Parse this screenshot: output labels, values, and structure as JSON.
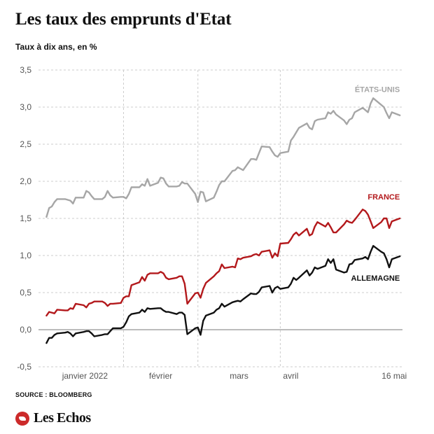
{
  "header": {
    "title": "Les taux des emprunts d'Etat",
    "subtitle": "Taux à dix ans, en %"
  },
  "footer": {
    "source": "SOURCE : BLOOMBERG",
    "brand": "Les Echos"
  },
  "colors": {
    "etats_unis": "#a6a6a6",
    "france": "#b3191c",
    "allemagne": "#111111",
    "grid": "#cccccc",
    "brand": "#cc2a2a"
  },
  "chart_data": {
    "type": "line",
    "title": "Les taux des emprunts d'Etat",
    "ylabel": "Taux à dix ans, en %",
    "ylim": [
      -0.5,
      3.5
    ],
    "yticks": [
      -0.5,
      0.0,
      0.5,
      1.0,
      1.5,
      2.0,
      2.5,
      3.0,
      3.5
    ],
    "ytick_labels": [
      "-0,5",
      "0,0",
      "0,5",
      "1,0",
      "1,5",
      "2,0",
      "2,5",
      "3,0",
      "3,5"
    ],
    "xlim": [
      "2021-12-31",
      "2022-05-17"
    ],
    "xticks": [
      {
        "date": "2022-01-03",
        "label": "janvier 2022"
      },
      {
        "date": "2022-02-01",
        "label": "février"
      },
      {
        "date": "2022-03-01",
        "label": "mars"
      },
      {
        "date": "2022-04-01",
        "label": "avril"
      },
      {
        "date": "2022-05-16",
        "label": "16 mai"
      }
    ],
    "grid": true,
    "x": [
      "2022-01-03",
      "2022-01-04",
      "2022-01-05",
      "2022-01-06",
      "2022-01-07",
      "2022-01-10",
      "2022-01-11",
      "2022-01-12",
      "2022-01-13",
      "2022-01-14",
      "2022-01-17",
      "2022-01-18",
      "2022-01-19",
      "2022-01-20",
      "2022-01-21",
      "2022-01-24",
      "2022-01-25",
      "2022-01-26",
      "2022-01-27",
      "2022-01-28",
      "2022-01-31",
      "2022-02-01",
      "2022-02-02",
      "2022-02-03",
      "2022-02-04",
      "2022-02-07",
      "2022-02-08",
      "2022-02-09",
      "2022-02-10",
      "2022-02-11",
      "2022-02-14",
      "2022-02-15",
      "2022-02-16",
      "2022-02-17",
      "2022-02-18",
      "2022-02-21",
      "2022-02-22",
      "2022-02-23",
      "2022-02-24",
      "2022-02-25",
      "2022-02-28",
      "2022-03-01",
      "2022-03-02",
      "2022-03-03",
      "2022-03-04",
      "2022-03-07",
      "2022-03-08",
      "2022-03-09",
      "2022-03-10",
      "2022-03-11",
      "2022-03-14",
      "2022-03-15",
      "2022-03-16",
      "2022-03-17",
      "2022-03-18",
      "2022-03-21",
      "2022-03-22",
      "2022-03-23",
      "2022-03-24",
      "2022-03-25",
      "2022-03-28",
      "2022-03-29",
      "2022-03-30",
      "2022-03-31",
      "2022-04-01",
      "2022-04-04",
      "2022-04-05",
      "2022-04-06",
      "2022-04-07",
      "2022-04-08",
      "2022-04-11",
      "2022-04-12",
      "2022-04-13",
      "2022-04-14",
      "2022-04-15",
      "2022-04-18",
      "2022-04-19",
      "2022-04-20",
      "2022-04-21",
      "2022-04-22",
      "2022-04-25",
      "2022-04-26",
      "2022-04-27",
      "2022-04-28",
      "2022-04-29",
      "2022-05-02",
      "2022-05-03",
      "2022-05-04",
      "2022-05-05",
      "2022-05-06",
      "2022-05-09",
      "2022-05-10",
      "2022-05-11",
      "2022-05-12",
      "2022-05-13",
      "2022-05-16"
    ],
    "series": [
      {
        "name": "ÉTATS-UNIS",
        "key": "etats_unis",
        "values": [
          1.52,
          1.64,
          1.66,
          1.72,
          1.76,
          1.76,
          1.75,
          1.74,
          1.7,
          1.78,
          1.78,
          1.87,
          1.85,
          1.8,
          1.76,
          1.76,
          1.79,
          1.87,
          1.81,
          1.78,
          1.79,
          1.79,
          1.77,
          1.83,
          1.92,
          1.92,
          1.96,
          1.94,
          2.03,
          1.94,
          1.98,
          2.05,
          2.04,
          1.97,
          1.93,
          1.93,
          1.94,
          1.99,
          1.97,
          1.97,
          1.83,
          1.72,
          1.86,
          1.85,
          1.73,
          1.78,
          1.86,
          1.95,
          2.0,
          2.0,
          2.14,
          2.15,
          2.19,
          2.17,
          2.15,
          2.3,
          2.3,
          2.29,
          2.38,
          2.47,
          2.46,
          2.4,
          2.35,
          2.33,
          2.38,
          2.4,
          2.55,
          2.6,
          2.66,
          2.72,
          2.78,
          2.72,
          2.7,
          2.81,
          2.83,
          2.85,
          2.93,
          2.91,
          2.95,
          2.9,
          2.82,
          2.77,
          2.83,
          2.85,
          2.93,
          2.99,
          2.96,
          2.93,
          3.05,
          3.12,
          3.03,
          3.0,
          2.92,
          2.85,
          2.93,
          2.89
        ]
      },
      {
        "name": "FRANCE",
        "key": "france",
        "values": [
          0.19,
          0.24,
          0.23,
          0.22,
          0.27,
          0.26,
          0.26,
          0.29,
          0.28,
          0.35,
          0.33,
          0.3,
          0.35,
          0.36,
          0.38,
          0.38,
          0.36,
          0.32,
          0.35,
          0.35,
          0.36,
          0.43,
          0.45,
          0.45,
          0.6,
          0.64,
          0.71,
          0.66,
          0.74,
          0.76,
          0.76,
          0.78,
          0.76,
          0.7,
          0.68,
          0.7,
          0.72,
          0.72,
          0.62,
          0.35,
          0.49,
          0.5,
          0.43,
          0.55,
          0.63,
          0.72,
          0.76,
          0.79,
          0.88,
          0.83,
          0.85,
          0.84,
          0.96,
          0.95,
          0.97,
          0.99,
          1.01,
          1.02,
          1.0,
          1.05,
          1.07,
          0.97,
          1.03,
          0.99,
          1.16,
          1.17,
          1.22,
          1.28,
          1.31,
          1.27,
          1.36,
          1.27,
          1.29,
          1.39,
          1.45,
          1.39,
          1.44,
          1.38,
          1.31,
          1.31,
          1.42,
          1.47,
          1.45,
          1.44,
          1.48,
          1.62,
          1.6,
          1.55,
          1.46,
          1.37,
          1.45,
          1.5,
          1.5,
          1.37,
          1.46,
          1.5
        ]
      },
      {
        "name": "ALLEMAGNE",
        "key": "allemagne",
        "values": [
          -0.18,
          -0.11,
          -0.11,
          -0.07,
          -0.05,
          -0.04,
          -0.03,
          -0.05,
          -0.09,
          -0.05,
          -0.03,
          -0.02,
          -0.02,
          -0.05,
          -0.09,
          -0.07,
          -0.06,
          -0.06,
          -0.02,
          0.02,
          0.02,
          0.04,
          0.1,
          0.18,
          0.21,
          0.23,
          0.27,
          0.24,
          0.29,
          0.28,
          0.29,
          0.29,
          0.26,
          0.24,
          0.24,
          0.21,
          0.23,
          0.23,
          0.2,
          -0.06,
          0.02,
          0.03,
          -0.07,
          0.12,
          0.19,
          0.23,
          0.27,
          0.29,
          0.35,
          0.31,
          0.37,
          0.38,
          0.39,
          0.38,
          0.41,
          0.49,
          0.48,
          0.48,
          0.51,
          0.57,
          0.59,
          0.5,
          0.56,
          0.58,
          0.55,
          0.57,
          0.62,
          0.7,
          0.67,
          0.7,
          0.8,
          0.73,
          0.77,
          0.84,
          0.82,
          0.86,
          0.95,
          0.9,
          0.95,
          0.81,
          0.77,
          0.78,
          0.88,
          0.89,
          0.94,
          0.96,
          0.98,
          0.95,
          1.05,
          1.13,
          1.05,
          1.03,
          0.95,
          0.84,
          0.95,
          0.99
        ]
      }
    ]
  }
}
